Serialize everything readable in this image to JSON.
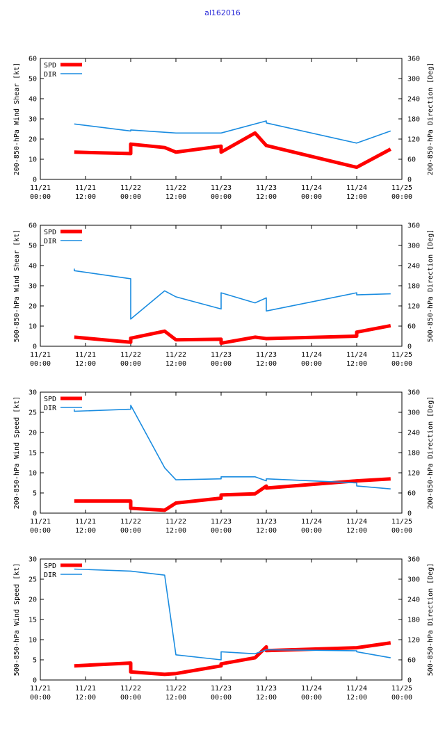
{
  "title": "al162016",
  "colors": {
    "spd": "#ff0000",
    "dir": "#1a8ce0",
    "title": "#2a2ad8",
    "axis": "#000000"
  },
  "legend": {
    "spd": "SPD",
    "dir": "DIR"
  },
  "x_ticks": [
    {
      "d": "11/21",
      "t": "00:00"
    },
    {
      "d": "11/21",
      "t": "12:00"
    },
    {
      "d": "11/22",
      "t": "00:00"
    },
    {
      "d": "11/22",
      "t": "12:00"
    },
    {
      "d": "11/23",
      "t": "00:00"
    },
    {
      "d": "11/23",
      "t": "12:00"
    },
    {
      "d": "11/24",
      "t": "00:00"
    },
    {
      "d": "11/24",
      "t": "12:00"
    },
    {
      "d": "11/25",
      "t": "00:00"
    }
  ],
  "chart_data": [
    {
      "type": "line",
      "ylabel": "200-850-hPa Wind Shear [kt]",
      "y2label": "200-850-hPa Direction [Deg]",
      "ylim": [
        0,
        60
      ],
      "yticks": [
        0,
        10,
        20,
        30,
        40,
        50,
        60
      ],
      "y2lim": [
        0,
        360
      ],
      "y2ticks": [
        0,
        60,
        120,
        180,
        240,
        300,
        360
      ],
      "xlim": [
        0,
        96
      ],
      "grid": false,
      "legend_position": "top-left",
      "series": [
        {
          "name": "SPD",
          "axis": "left",
          "x": [
            9,
            24,
            24,
            33,
            36,
            48,
            48,
            57,
            60,
            84,
            93
          ],
          "y": [
            13.5,
            12.8,
            17.5,
            15.8,
            13.5,
            16.5,
            13.5,
            23,
            16.8,
            6,
            15
          ]
        },
        {
          "name": "DIR",
          "axis": "right",
          "x": [
            9,
            24,
            24,
            36,
            48,
            60,
            60,
            84,
            93
          ],
          "y": [
            165,
            144,
            147,
            138,
            138,
            174,
            168,
            108,
            144
          ]
        }
      ]
    },
    {
      "type": "line",
      "ylabel": "500-850-hPa Wind Shear [kt]",
      "y2label": "500-850-hPa Direction [Deg]",
      "ylim": [
        0,
        60
      ],
      "yticks": [
        0,
        10,
        20,
        30,
        40,
        50,
        60
      ],
      "y2lim": [
        0,
        360
      ],
      "y2ticks": [
        0,
        60,
        120,
        180,
        240,
        300,
        360
      ],
      "xlim": [
        0,
        96
      ],
      "grid": false,
      "legend_position": "top-left",
      "series": [
        {
          "name": "SPD",
          "axis": "left",
          "x": [
            9,
            24,
            24,
            33,
            36,
            48,
            48,
            57,
            60,
            84,
            84,
            93
          ],
          "y": [
            4.5,
            2,
            4,
            7.5,
            3.2,
            3.5,
            1.5,
            4.5,
            3.8,
            5,
            7,
            10.2
          ]
        },
        {
          "name": "DIR",
          "axis": "right",
          "x": [
            9,
            9,
            24,
            24,
            33,
            36,
            48,
            48,
            57,
            60,
            60,
            84,
            84,
            93
          ],
          "y": [
            231,
            225,
            201,
            81,
            165,
            147,
            111,
            159,
            129,
            144,
            105,
            159,
            153,
            156
          ]
        }
      ]
    },
    {
      "type": "line",
      "ylabel": "200-850-hPa Wind Speed [kt]",
      "y2label": "200-850-hPa Direction [Deg]",
      "ylim": [
        0,
        30
      ],
      "yticks": [
        0,
        5,
        10,
        15,
        20,
        25,
        30
      ],
      "y2lim": [
        0,
        360
      ],
      "y2ticks": [
        0,
        60,
        120,
        180,
        240,
        300,
        360
      ],
      "xlim": [
        0,
        96
      ],
      "grid": false,
      "legend_position": "top-left",
      "series": [
        {
          "name": "SPD",
          "axis": "left",
          "x": [
            9,
            24,
            24,
            33,
            36,
            48,
            48,
            57,
            60,
            60,
            84,
            93
          ],
          "y": [
            3,
            3,
            1.2,
            0.7,
            2.5,
            3.7,
            4.5,
            4.8,
            6.7,
            6.2,
            8,
            8.5
          ]
        },
        {
          "name": "DIR",
          "axis": "right",
          "x": [
            9,
            9,
            24,
            24,
            33,
            36,
            48,
            48,
            57,
            60,
            60,
            84,
            84,
            93
          ],
          "y": [
            309,
            303,
            309,
            321,
            135,
            99,
            102,
            108,
            108,
            96,
            102,
            90,
            81,
            72
          ]
        }
      ]
    },
    {
      "type": "line",
      "ylabel": "500-850-hPa Wind Speed [kt]",
      "y2label": "500-850-hPa Direction [Deg]",
      "ylim": [
        0,
        30
      ],
      "yticks": [
        0,
        5,
        10,
        15,
        20,
        25,
        30
      ],
      "y2lim": [
        0,
        360
      ],
      "y2ticks": [
        0,
        60,
        120,
        180,
        240,
        300,
        360
      ],
      "xlim": [
        0,
        96
      ],
      "grid": false,
      "legend_position": "top-left",
      "series": [
        {
          "name": "SPD",
          "axis": "left",
          "x": [
            9,
            24,
            24,
            33,
            36,
            48,
            48,
            57,
            60,
            60,
            84,
            93
          ],
          "y": [
            3.5,
            4.2,
            2,
            1.4,
            1.6,
            3.5,
            4,
            5.5,
            8.2,
            7.3,
            8,
            9.2
          ]
        },
        {
          "name": "DIR",
          "axis": "right",
          "x": [
            9,
            24,
            24,
            33,
            36,
            48,
            48,
            57,
            60,
            84,
            84,
            93
          ],
          "y": [
            330,
            324,
            324,
            312,
            75,
            60,
            84,
            78,
            90,
            87,
            84,
            66
          ]
        }
      ]
    }
  ]
}
